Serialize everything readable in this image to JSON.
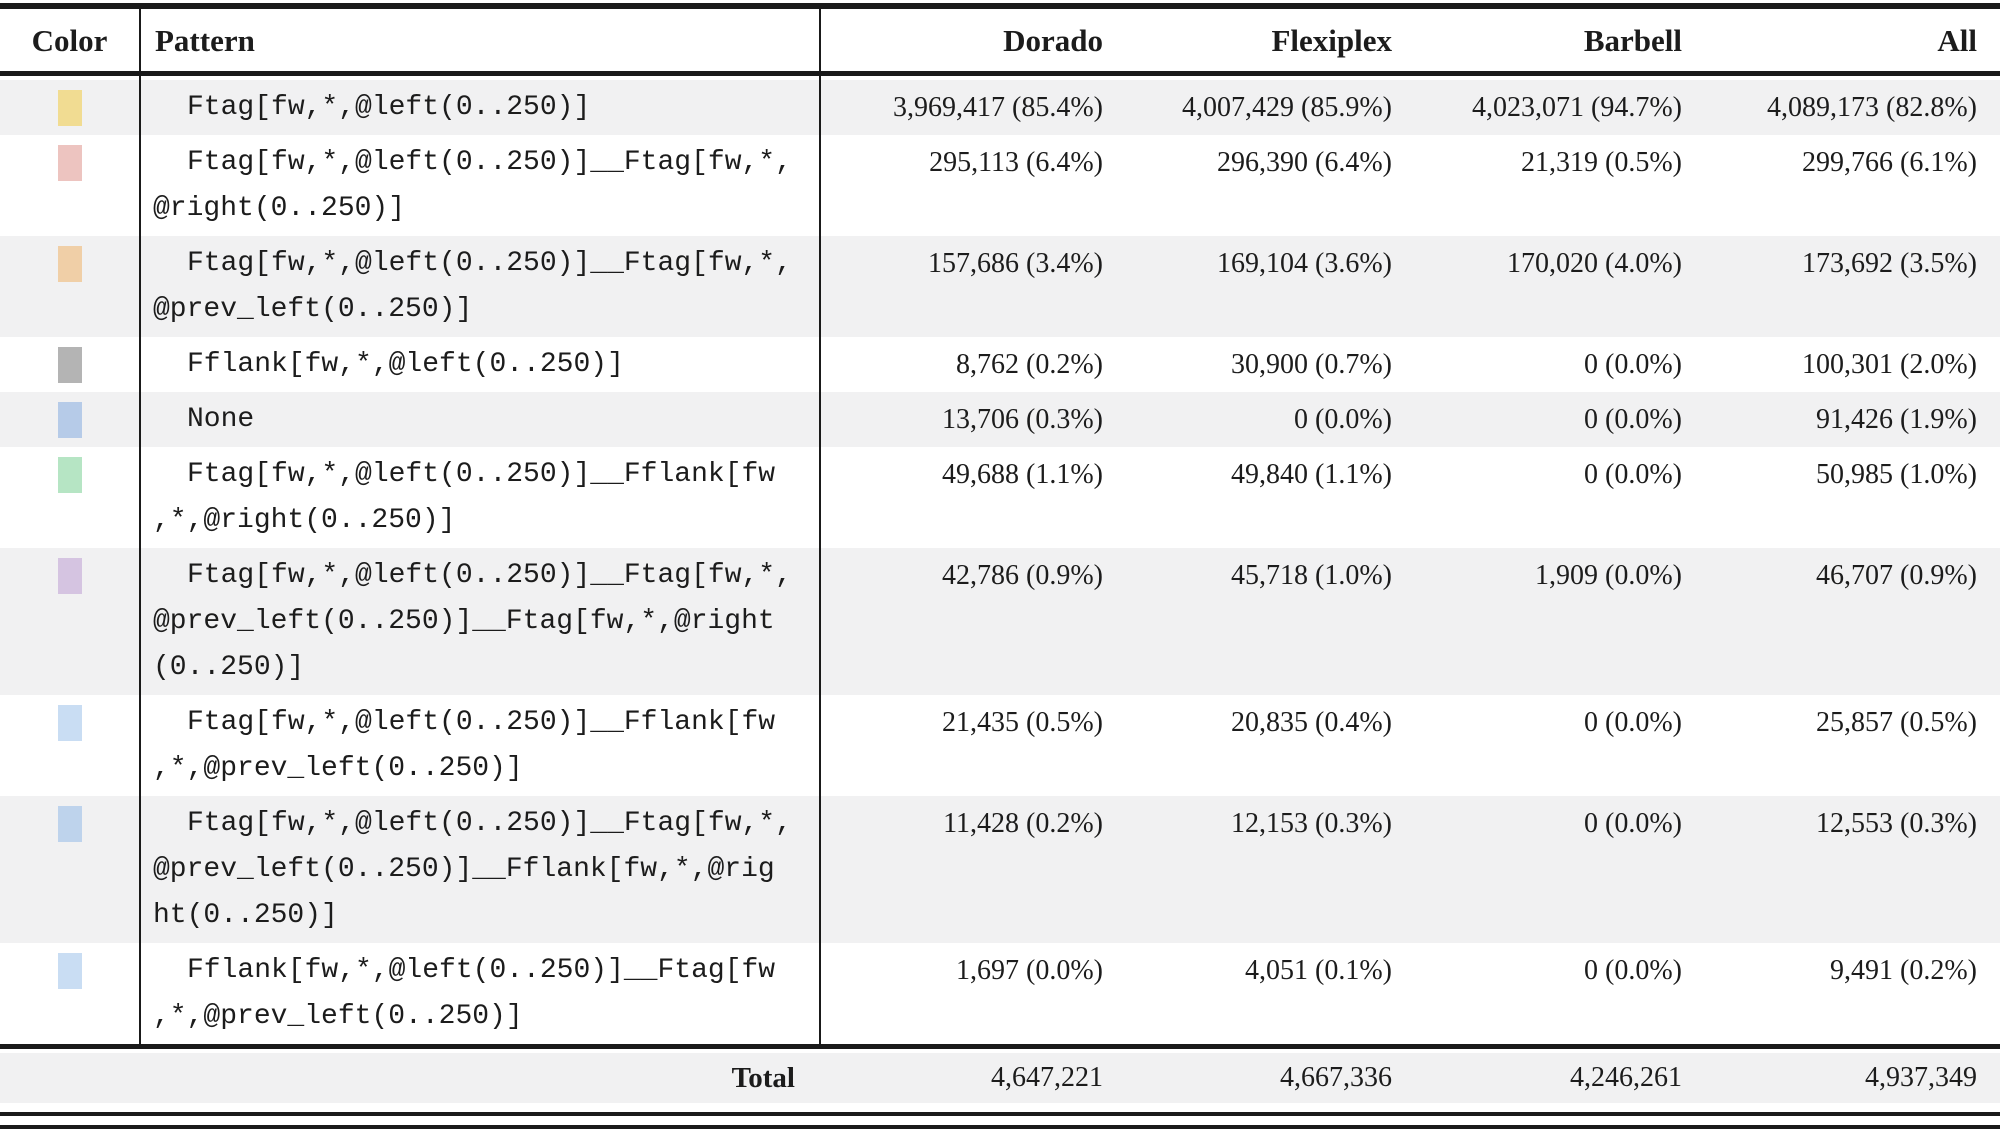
{
  "table": {
    "columns": {
      "color": "Color",
      "pattern": "Pattern",
      "samples": [
        "Dorado",
        "Flexiplex",
        "Barbell",
        "All"
      ]
    },
    "rows": [
      {
        "color": "#f1dc92",
        "pattern": "Ftag[fw,*,@left(0..250)]",
        "lines": [
          "Ftag[fw,*,@left(0..250)]"
        ],
        "values": [
          "3,969,417 (85.4%)",
          "4,007,429 (85.9%)",
          "4,023,071 (94.7%)",
          "4,089,173 (82.8%)"
        ]
      },
      {
        "color": "#edc4c0",
        "pattern": "Ftag[fw,*,@left(0..250)]__Ftag[fw,*,@right(0..250)]",
        "lines": [
          "Ftag[fw,*,@left(0..250)]__Ftag[fw,*,",
          "@right(0..250)]"
        ],
        "values": [
          "295,113 (6.4%)",
          "296,390 (6.4%)",
          "21,319 (0.5%)",
          "299,766 (6.1%)"
        ]
      },
      {
        "color": "#f0cfa7",
        "pattern": "Ftag[fw,*,@left(0..250)]__Ftag[fw,*,@prev_left(0..250)]",
        "lines": [
          "Ftag[fw,*,@left(0..250)]__Ftag[fw,*,",
          "@prev_left(0..250)]"
        ],
        "values": [
          "157,686 (3.4%)",
          "169,104 (3.6%)",
          "170,020 (4.0%)",
          "173,692 (3.5%)"
        ]
      },
      {
        "color": "#b4b4b4",
        "pattern": "Fflank[fw,*,@left(0..250)]",
        "lines": [
          "Fflank[fw,*,@left(0..250)]"
        ],
        "values": [
          "8,762 (0.2%)",
          "30,900 (0.7%)",
          "0 (0.0%)",
          "100,301 (2.0%)"
        ]
      },
      {
        "color": "#b6cbe8",
        "pattern": "None",
        "lines": [
          "None"
        ],
        "values": [
          "13,706 (0.3%)",
          "0 (0.0%)",
          "0 (0.0%)",
          "91,426 (1.9%)"
        ]
      },
      {
        "color": "#b6e5c4",
        "pattern": "Ftag[fw,*,@left(0..250)]__Fflank[fw,*,@right(0..250)]",
        "lines": [
          "Ftag[fw,*,@left(0..250)]__Fflank[fw",
          ",*,@right(0..250)]"
        ],
        "values": [
          "49,688 (1.1%)",
          "49,840 (1.1%)",
          "0 (0.0%)",
          "50,985 (1.0%)"
        ]
      },
      {
        "color": "#d5c4e1",
        "pattern": "Ftag[fw,*,@left(0..250)]__Ftag[fw,*,@prev_left(0..250)]__Ftag[fw,*,@right(0..250)]",
        "lines": [
          "Ftag[fw,*,@left(0..250)]__Ftag[fw,*,",
          "@prev_left(0..250)]__Ftag[fw,*,@right",
          "(0..250)]"
        ],
        "values": [
          "42,786 (0.9%)",
          "45,718 (1.0%)",
          "1,909 (0.0%)",
          "46,707 (0.9%)"
        ]
      },
      {
        "color": "#c9ddf3",
        "pattern": "Ftag[fw,*,@left(0..250)]__Fflank[fw,*,@prev_left(0..250)]",
        "lines": [
          "Ftag[fw,*,@left(0..250)]__Fflank[fw",
          ",*,@prev_left(0..250)]"
        ],
        "values": [
          "21,435 (0.5%)",
          "20,835 (0.4%)",
          "0 (0.0%)",
          "25,857 (0.5%)"
        ]
      },
      {
        "color": "#bed3ec",
        "pattern": "Ftag[fw,*,@left(0..250)]__Ftag[fw,*,@prev_left(0..250)]__Fflank[fw,*,@right(0..250)]",
        "lines": [
          "Ftag[fw,*,@left(0..250)]__Ftag[fw,*,",
          "@prev_left(0..250)]__Fflank[fw,*,@rig",
          "ht(0..250)]"
        ],
        "values": [
          "11,428 (0.2%)",
          "12,153 (0.3%)",
          "0 (0.0%)",
          "12,553 (0.3%)"
        ]
      },
      {
        "color": "#c9ddf3",
        "pattern": "Fflank[fw,*,@left(0..250)]__Ftag[fw,*,@prev_left(0..250)]",
        "lines": [
          "Fflank[fw,*,@left(0..250)]__Ftag[fw",
          ",*,@prev_left(0..250)]"
        ],
        "values": [
          "1,697 (0.0%)",
          "4,051 (0.1%)",
          "0 (0.0%)",
          "9,491 (0.2%)"
        ]
      }
    ],
    "total": {
      "label": "Total",
      "values": [
        "4,647,221",
        "4,667,336",
        "4,246,261",
        "4,937,349"
      ]
    }
  }
}
